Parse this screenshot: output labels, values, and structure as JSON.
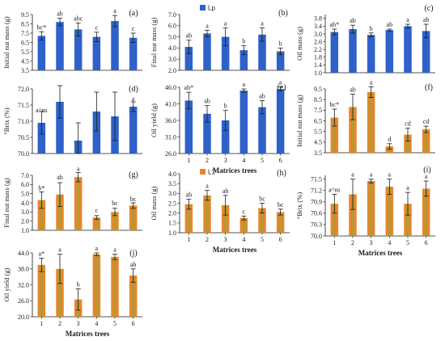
{
  "colors": {
    "lp_bar": "#2e62c9",
    "l1_bar": "#e8862e",
    "l1_inner": "#93a534",
    "err": "#1a1a1a"
  },
  "legend": {
    "lp": "Lp",
    "l1": "L1"
  },
  "chart_data": [
    {
      "id": "a",
      "panel_label": "(a)",
      "type": "bar",
      "series_name": "Lp",
      "ylabel": "Initial nut mass (g)",
      "xlabel": "",
      "ylim": [
        3.5,
        9.5
      ],
      "yticks": [
        "3.5",
        "4.5",
        "5.5",
        "6.5",
        "7.5",
        "8.5",
        "9.5"
      ],
      "ytick_values": [
        3.5,
        4.5,
        5.5,
        6.5,
        7.5,
        8.5,
        9.5
      ],
      "categories": [
        "1",
        "2",
        "3",
        "4",
        "5",
        "6"
      ],
      "show_xticks": false,
      "values": [
        7.2,
        8.7,
        7.9,
        7.1,
        8.8,
        7.0
      ],
      "errors": [
        0.45,
        0.4,
        0.7,
        0.5,
        0.6,
        0.5
      ],
      "letters": [
        "bc*",
        "ab",
        "abc",
        "c",
        "a",
        "c"
      ]
    },
    {
      "id": "b",
      "panel_label": "(b)",
      "type": "bar",
      "series_name": "Lp",
      "ylabel": "Final nut mass (g)",
      "xlabel": "",
      "ylim": [
        2.0,
        7.0
      ],
      "yticks": [
        "2.0",
        "3.0",
        "4.0",
        "5.0",
        "6.0",
        "7.0"
      ],
      "ytick_values": [
        2,
        3,
        4,
        5,
        6,
        7
      ],
      "categories": [
        "1",
        "2",
        "3",
        "4",
        "5",
        "6"
      ],
      "show_xticks": false,
      "values": [
        4.1,
        5.3,
        5.0,
        3.8,
        5.2,
        3.7
      ],
      "errors": [
        0.6,
        0.3,
        0.8,
        0.4,
        0.6,
        0.3
      ],
      "letters": [
        "ab",
        "a",
        "a",
        "b",
        "a",
        "b"
      ]
    },
    {
      "id": "c",
      "panel_label": "(c)",
      "type": "bar",
      "series_name": "Lp",
      "ylabel": "Oil mass (g)",
      "xlabel": "",
      "ylim": [
        1.0,
        4.0
      ],
      "yticks": [
        "1.0",
        "1.4",
        "1.8",
        "2.2",
        "2.6",
        "3.0",
        "3.4",
        "3.8"
      ],
      "ytick_values": [
        1.0,
        1.4,
        1.8,
        2.2,
        2.6,
        3.0,
        3.4,
        3.8
      ],
      "categories": [
        "1",
        "2",
        "3",
        "4",
        "5",
        "6"
      ],
      "show_xticks": false,
      "values": [
        3.1,
        3.25,
        2.95,
        3.2,
        3.4,
        3.15
      ],
      "errors": [
        0.15,
        0.2,
        0.1,
        0.05,
        0.1,
        0.35
      ],
      "letters": [
        "ab*",
        "ab",
        "b",
        "ab",
        "a",
        "ab"
      ]
    },
    {
      "id": "d",
      "panel_label": "(d)",
      "type": "bar",
      "series_name": "Lp",
      "ylabel": "°Brix (%)",
      "xlabel": "",
      "ylim": [
        70.0,
        72.0
      ],
      "yticks": [
        "70.0",
        "70.5",
        "71.0",
        "71.5",
        "72.0"
      ],
      "ytick_values": [
        70.0,
        70.5,
        71.0,
        71.5,
        72.0
      ],
      "categories": [
        "1",
        "2",
        "3",
        "4",
        "5",
        "6"
      ],
      "show_xticks": false,
      "values": [
        70.95,
        71.6,
        70.4,
        71.3,
        71.15,
        71.45
      ],
      "errors": [
        0.35,
        0.5,
        0.55,
        0.6,
        0.75,
        0.15
      ],
      "letters": [
        "a^ns",
        "",
        "",
        "",
        "",
        "a"
      ]
    },
    {
      "id": "e",
      "panel_label": "(e)",
      "type": "bar",
      "series_name": "Lp",
      "ylabel": "Oil yield (g)",
      "xlabel": "Matrices trees",
      "ylim": [
        26.0,
        46.0
      ],
      "yticks": [
        "26.0",
        "31.0",
        "36.0",
        "41.0",
        "46.0"
      ],
      "ytick_values": [
        26,
        31,
        36,
        41,
        46
      ],
      "categories": [
        "1",
        "2",
        "3",
        "4",
        "5",
        "6"
      ],
      "show_xticks": true,
      "values": [
        42.0,
        38.0,
        36.0,
        45.0,
        40.0,
        45.5
      ],
      "errors": [
        2.5,
        2.5,
        3.0,
        0.5,
        2.0,
        0.6
      ],
      "letters": [
        "ab*",
        "ab",
        "b",
        "a",
        "ab",
        "a"
      ]
    },
    {
      "id": "f",
      "panel_label": "(f)",
      "type": "bar",
      "series_name": "L1",
      "ylabel": "Initial nut mass (g)",
      "xlabel": "",
      "ylim": [
        3.5,
        9.5
      ],
      "yticks": [
        "3.5",
        "4.5",
        "5.5",
        "6.5",
        "7.5",
        "8.5",
        "9.5"
      ],
      "ytick_values": [
        3.5,
        4.5,
        5.5,
        6.5,
        7.5,
        8.5,
        9.5
      ],
      "categories": [
        "1",
        "2",
        "3",
        "4",
        "5",
        "6"
      ],
      "show_xticks": false,
      "values": [
        6.8,
        7.8,
        9.2,
        4.1,
        5.2,
        5.7
      ],
      "errors": [
        0.8,
        1.2,
        0.5,
        0.25,
        0.6,
        0.3
      ],
      "letters": [
        "bc*",
        "ab",
        "a",
        "d",
        "cd",
        "cd"
      ]
    },
    {
      "id": "g",
      "panel_label": "(g)",
      "type": "bar",
      "series_name": "L1",
      "ylabel": "Final nut mass (g)",
      "xlabel": "",
      "ylim": [
        1.0,
        7.0
      ],
      "yticks": [
        "1.0",
        "2.0",
        "3.0",
        "4.0",
        "5.0",
        "6.0",
        "7.0"
      ],
      "ytick_values": [
        1,
        2,
        3,
        4,
        5,
        6,
        7
      ],
      "categories": [
        "1",
        "2",
        "3",
        "4",
        "5",
        "6"
      ],
      "show_xticks": false,
      "values": [
        4.3,
        4.9,
        6.8,
        2.4,
        3.0,
        3.7
      ],
      "errors": [
        0.9,
        1.3,
        0.5,
        0.2,
        0.4,
        0.3
      ],
      "letters": [
        "b*",
        "ab",
        "a",
        "c",
        "bc",
        "bc"
      ]
    },
    {
      "id": "h",
      "panel_label": "(h)",
      "type": "bar",
      "series_name": "L1",
      "ylabel": "Oil mass (g)",
      "xlabel": "Matrices trees",
      "ylim": [
        1.0,
        4.0
      ],
      "yticks": [
        "1.0",
        "1.5",
        "2.0",
        "2.5",
        "3.0",
        "3.5",
        "4.0"
      ],
      "ytick_values": [
        1.0,
        1.5,
        2.0,
        2.5,
        3.0,
        3.5,
        4.0
      ],
      "categories": [
        "1",
        "2",
        "3",
        "4",
        "5",
        "6"
      ],
      "show_xticks": true,
      "values": [
        2.45,
        2.9,
        2.4,
        1.75,
        2.25,
        2.05
      ],
      "errors": [
        0.25,
        0.25,
        0.5,
        0.1,
        0.25,
        0.15
      ],
      "letters": [
        "ab",
        "a",
        "ab",
        "c",
        "bc",
        "bc"
      ]
    },
    {
      "id": "i",
      "panel_label": "(i)",
      "type": "bar",
      "series_name": "L1",
      "ylabel": "°Brix (%)",
      "xlabel": "Matrices trees",
      "ylim": [
        70.0,
        71.6
      ],
      "yticks": [
        "70.0",
        "70.3",
        "70.6",
        "70.9",
        "71.2",
        "71.5"
      ],
      "ytick_values": [
        70.0,
        70.3,
        70.6,
        70.9,
        71.2,
        71.5
      ],
      "categories": [
        "1",
        "2",
        "3",
        "4",
        "5",
        "6"
      ],
      "show_xticks": true,
      "values": [
        70.85,
        71.1,
        71.45,
        71.3,
        70.85,
        71.25
      ],
      "errors": [
        0.25,
        0.4,
        0.05,
        0.2,
        0.3,
        0.2
      ],
      "letters": [
        "a^ns",
        "a",
        "a",
        "a",
        "a",
        "a"
      ]
    },
    {
      "id": "j",
      "panel_label": "(j)",
      "type": "bar",
      "series_name": "L1",
      "ylabel": "Oil yield (g)",
      "xlabel": "Matrices trees",
      "ylim": [
        20.0,
        44.0
      ],
      "yticks": [
        "20.0",
        "26.0",
        "32.0",
        "38.0",
        "44.0"
      ],
      "ytick_values": [
        20,
        26,
        32,
        38,
        44
      ],
      "categories": [
        "1",
        "2",
        "3",
        "4",
        "5",
        "6"
      ],
      "show_xticks": true,
      "values": [
        39.5,
        38.0,
        26.5,
        43.5,
        42.5,
        35.5
      ],
      "errors": [
        2.5,
        5.5,
        4.0,
        0.5,
        1.0,
        2.5
      ],
      "letters": [
        "a*",
        "a",
        "b",
        "a",
        "a",
        "ab"
      ]
    }
  ]
}
